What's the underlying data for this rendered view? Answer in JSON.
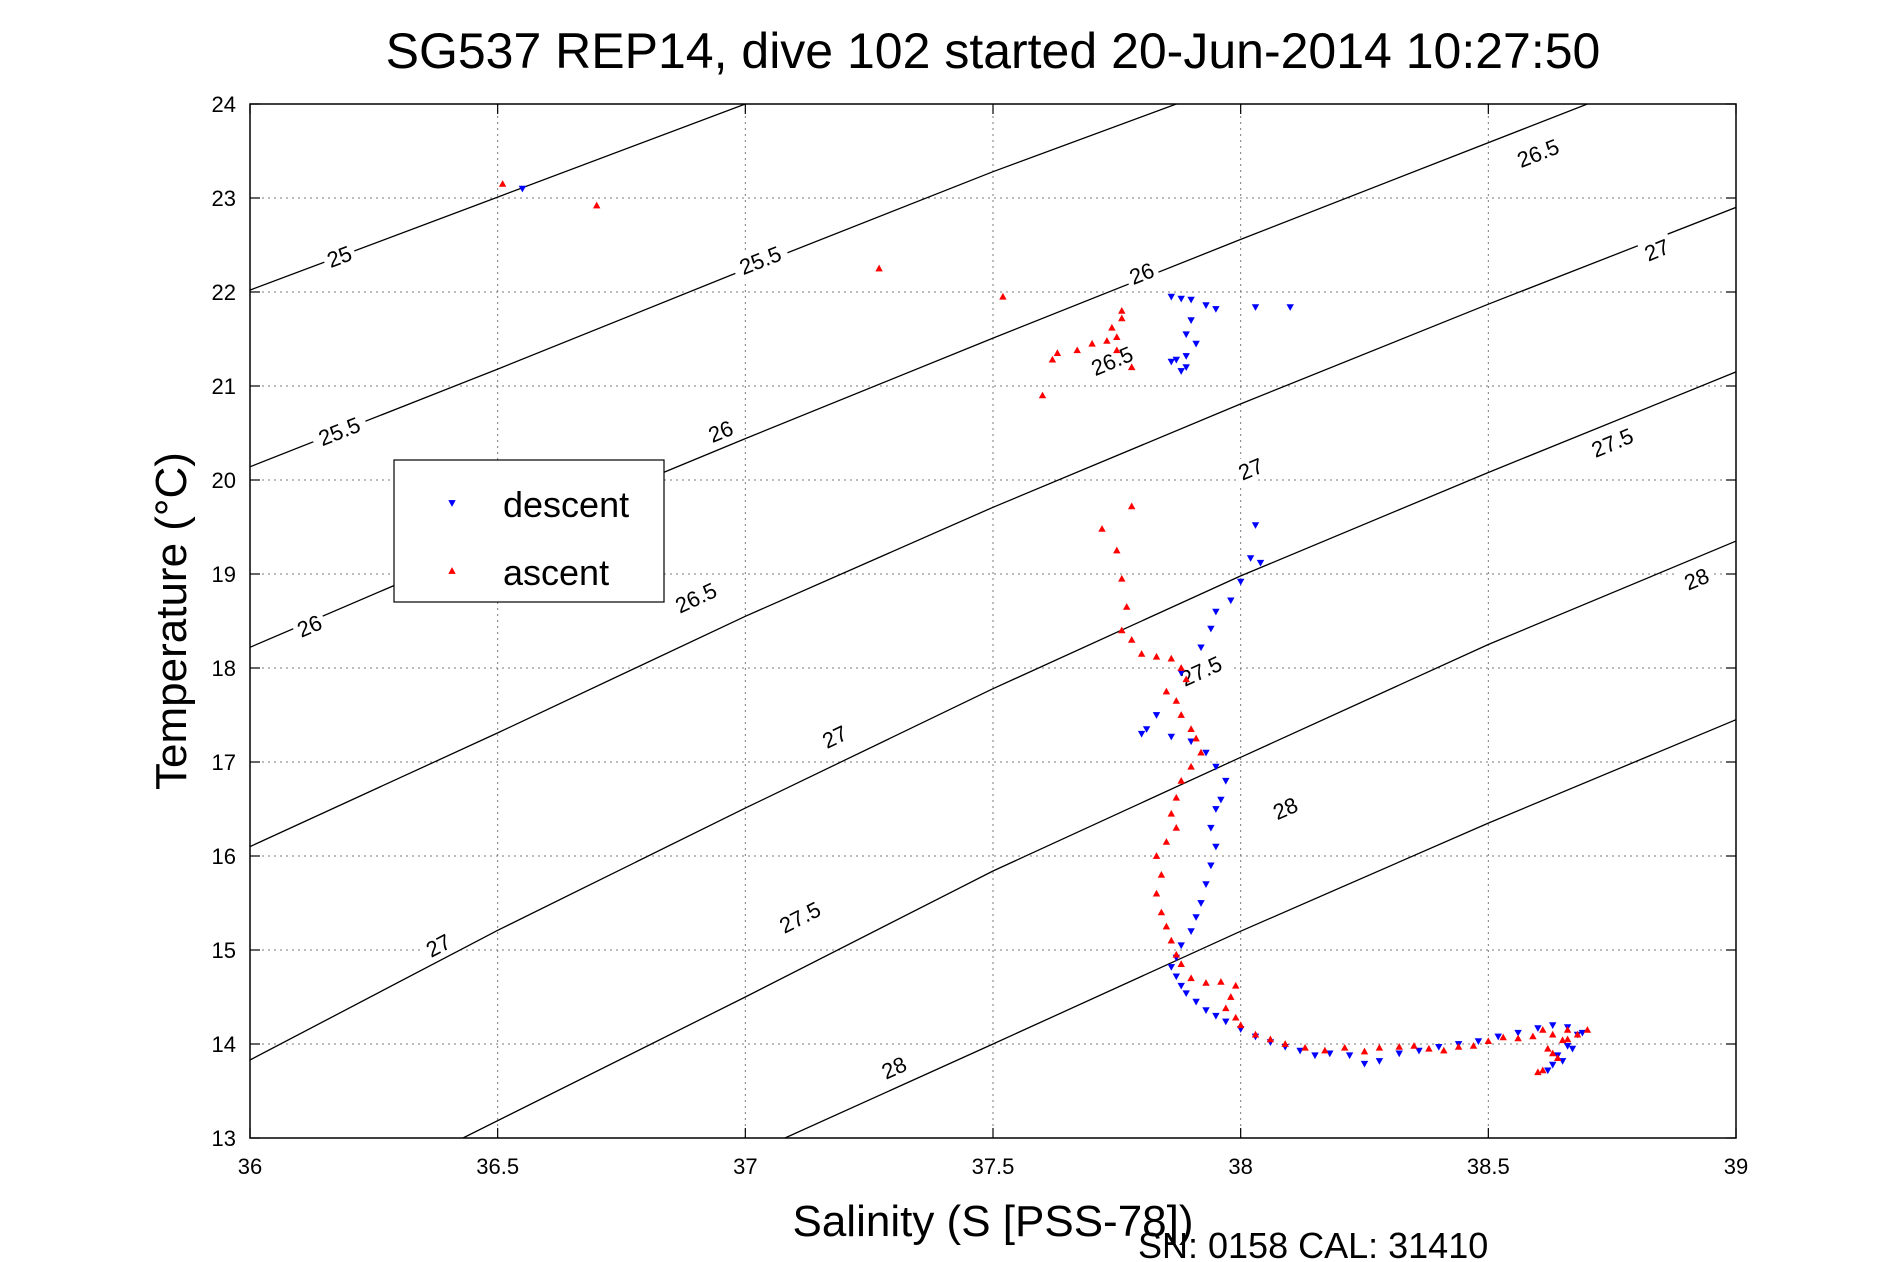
{
  "chart_data": {
    "type": "scatter",
    "title": "SG537 REP14, dive 102 started 20-Jun-2014 10:27:50",
    "xlabel": "Salinity (S [PSS-78])",
    "ylabel": "Temperature (°C)",
    "xlim": [
      36,
      39
    ],
    "ylim": [
      13,
      24
    ],
    "x_ticks": [
      36,
      36.5,
      37,
      37.5,
      38,
      38.5,
      39
    ],
    "x_tick_labels": [
      "36",
      "36.5",
      "37",
      "37.5",
      "38",
      "38.5",
      "39"
    ],
    "y_ticks": [
      13,
      14,
      15,
      16,
      17,
      18,
      19,
      20,
      21,
      22,
      23,
      24
    ],
    "y_tick_labels": [
      "13",
      "14",
      "15",
      "16",
      "17",
      "18",
      "19",
      "20",
      "21",
      "22",
      "23",
      "24"
    ],
    "grid": true,
    "legend_position": "left-center",
    "footer": "SN: 0158  CAL: 31410",
    "contours": [
      {
        "label": "25",
        "points": [
          [
            36.0,
            22.02
          ],
          [
            36.5,
            23.01
          ],
          [
            37.0,
            24.0
          ]
        ],
        "label_positions": [
          [
            36.18,
            22.38
          ]
        ]
      },
      {
        "label": "25.5",
        "points": [
          [
            36.0,
            20.14
          ],
          [
            36.5,
            21.18
          ],
          [
            37.0,
            22.24
          ],
          [
            37.5,
            23.28
          ],
          [
            37.87,
            24.0
          ]
        ],
        "label_positions": [
          [
            36.18,
            20.52
          ],
          [
            37.03,
            22.34
          ]
        ]
      },
      {
        "label": "26",
        "points": [
          [
            36.0,
            18.22
          ],
          [
            36.5,
            19.35
          ],
          [
            37.0,
            20.44
          ],
          [
            37.5,
            21.51
          ],
          [
            38.0,
            22.56
          ],
          [
            38.7,
            24.0
          ]
        ],
        "label_positions": [
          [
            36.12,
            18.45
          ],
          [
            36.95,
            20.52
          ],
          [
            37.8,
            22.2
          ]
        ]
      },
      {
        "label": "26.5",
        "points": [
          [
            36.0,
            16.1
          ],
          [
            36.5,
            17.31
          ],
          [
            37.0,
            18.55
          ],
          [
            37.5,
            19.71
          ],
          [
            38.0,
            20.81
          ],
          [
            38.5,
            21.87
          ],
          [
            39.0,
            22.9
          ]
        ],
        "label_positions": [
          [
            36.9,
            18.75
          ],
          [
            37.74,
            21.27
          ],
          [
            38.6,
            23.48
          ]
        ]
      },
      {
        "label": "27",
        "points": [
          [
            36.0,
            13.83
          ],
          [
            36.5,
            15.21
          ],
          [
            37.0,
            16.51
          ],
          [
            37.5,
            17.78
          ],
          [
            38.0,
            18.98
          ],
          [
            38.5,
            20.08
          ],
          [
            39.0,
            21.15
          ]
        ],
        "label_positions": [
          [
            36.38,
            15.05
          ],
          [
            37.18,
            17.27
          ],
          [
            38.02,
            20.12
          ],
          [
            38.84,
            22.45
          ]
        ]
      },
      {
        "label": "27.5",
        "points": [
          [
            36.43,
            13.0
          ],
          [
            37.0,
            14.5
          ],
          [
            37.5,
            15.84
          ],
          [
            38.0,
            17.05
          ],
          [
            38.5,
            18.25
          ],
          [
            39.0,
            19.35
          ]
        ],
        "label_positions": [
          [
            37.11,
            15.35
          ],
          [
            37.92,
            17.97
          ],
          [
            38.75,
            20.4
          ]
        ]
      },
      {
        "label": "28",
        "points": [
          [
            37.08,
            13.0
          ],
          [
            37.5,
            14.0
          ],
          [
            38.0,
            15.2
          ],
          [
            38.5,
            16.35
          ],
          [
            39.0,
            17.45
          ]
        ],
        "label_positions": [
          [
            37.3,
            13.75
          ],
          [
            38.09,
            16.51
          ],
          [
            38.92,
            18.95
          ]
        ]
      }
    ],
    "series": [
      {
        "name": "descent",
        "color": "#0000ff",
        "marker": "triangle-down",
        "points": [
          [
            36.55,
            23.1
          ],
          [
            37.86,
            21.95
          ],
          [
            37.88,
            21.93
          ],
          [
            37.9,
            21.92
          ],
          [
            37.93,
            21.86
          ],
          [
            37.95,
            21.82
          ],
          [
            38.03,
            21.84
          ],
          [
            38.1,
            21.84
          ],
          [
            37.9,
            21.7
          ],
          [
            37.89,
            21.55
          ],
          [
            37.91,
            21.45
          ],
          [
            37.89,
            21.32
          ],
          [
            37.87,
            21.28
          ],
          [
            37.86,
            21.26
          ],
          [
            37.89,
            21.2
          ],
          [
            37.88,
            21.16
          ],
          [
            38.03,
            19.52
          ],
          [
            38.02,
            19.17
          ],
          [
            38.04,
            19.12
          ],
          [
            38.0,
            18.92
          ],
          [
            37.98,
            18.72
          ],
          [
            37.95,
            18.6
          ],
          [
            37.94,
            18.42
          ],
          [
            37.92,
            18.22
          ],
          [
            37.88,
            17.95
          ],
          [
            37.83,
            17.5
          ],
          [
            37.81,
            17.35
          ],
          [
            37.8,
            17.3
          ],
          [
            37.86,
            17.27
          ],
          [
            37.9,
            17.22
          ],
          [
            37.93,
            17.1
          ],
          [
            37.95,
            16.95
          ],
          [
            37.97,
            16.8
          ],
          [
            37.96,
            16.6
          ],
          [
            37.95,
            16.5
          ],
          [
            37.94,
            16.3
          ],
          [
            37.95,
            16.1
          ],
          [
            37.94,
            15.9
          ],
          [
            37.93,
            15.7
          ],
          [
            37.92,
            15.5
          ],
          [
            37.91,
            15.35
          ],
          [
            37.9,
            15.2
          ],
          [
            37.88,
            15.05
          ],
          [
            37.87,
            14.92
          ],
          [
            37.86,
            14.82
          ],
          [
            37.87,
            14.72
          ],
          [
            37.88,
            14.62
          ],
          [
            37.89,
            14.54
          ],
          [
            37.91,
            14.45
          ],
          [
            37.93,
            14.36
          ],
          [
            37.95,
            14.3
          ],
          [
            37.97,
            14.24
          ],
          [
            38.0,
            14.16
          ],
          [
            38.03,
            14.08
          ],
          [
            38.06,
            14.02
          ],
          [
            38.09,
            13.97
          ],
          [
            38.12,
            13.93
          ],
          [
            38.15,
            13.88
          ],
          [
            38.18,
            13.9
          ],
          [
            38.22,
            13.88
          ],
          [
            38.25,
            13.79
          ],
          [
            38.28,
            13.82
          ],
          [
            38.32,
            13.9
          ],
          [
            38.36,
            13.93
          ],
          [
            38.4,
            13.97
          ],
          [
            38.44,
            14.0
          ],
          [
            38.48,
            14.03
          ],
          [
            38.52,
            14.08
          ],
          [
            38.56,
            14.12
          ],
          [
            38.6,
            14.17
          ],
          [
            38.63,
            14.2
          ],
          [
            38.66,
            14.18
          ],
          [
            38.68,
            14.1
          ],
          [
            38.66,
            13.98
          ],
          [
            38.64,
            13.88
          ],
          [
            38.63,
            13.78
          ],
          [
            38.62,
            13.72
          ],
          [
            38.65,
            13.82
          ],
          [
            38.67,
            13.95
          ],
          [
            38.69,
            14.12
          ]
        ]
      },
      {
        "name": "ascent",
        "color": "#ff0000",
        "marker": "triangle-up",
        "points": [
          [
            36.51,
            23.15
          ],
          [
            36.7,
            22.92
          ],
          [
            37.27,
            22.25
          ],
          [
            37.52,
            21.95
          ],
          [
            37.6,
            20.9
          ],
          [
            37.62,
            21.28
          ],
          [
            37.63,
            21.35
          ],
          [
            37.67,
            21.38
          ],
          [
            37.7,
            21.45
          ],
          [
            37.73,
            21.48
          ],
          [
            37.75,
            21.52
          ],
          [
            37.74,
            21.62
          ],
          [
            37.76,
            21.72
          ],
          [
            37.76,
            21.8
          ],
          [
            37.75,
            21.38
          ],
          [
            37.78,
            21.2
          ],
          [
            37.78,
            19.72
          ],
          [
            37.72,
            19.48
          ],
          [
            37.75,
            19.25
          ],
          [
            37.76,
            18.95
          ],
          [
            37.77,
            18.65
          ],
          [
            37.76,
            18.4
          ],
          [
            37.78,
            18.3
          ],
          [
            37.8,
            18.15
          ],
          [
            37.83,
            18.12
          ],
          [
            37.86,
            18.1
          ],
          [
            37.88,
            18.0
          ],
          [
            37.89,
            17.88
          ],
          [
            37.85,
            17.75
          ],
          [
            37.87,
            17.65
          ],
          [
            37.88,
            17.5
          ],
          [
            37.9,
            17.35
          ],
          [
            37.91,
            17.25
          ],
          [
            37.92,
            17.1
          ],
          [
            37.9,
            16.95
          ],
          [
            37.88,
            16.8
          ],
          [
            37.87,
            16.62
          ],
          [
            37.86,
            16.45
          ],
          [
            37.87,
            16.3
          ],
          [
            37.85,
            16.15
          ],
          [
            37.83,
            16.0
          ],
          [
            37.84,
            15.8
          ],
          [
            37.83,
            15.6
          ],
          [
            37.84,
            15.4
          ],
          [
            37.85,
            15.25
          ],
          [
            37.86,
            15.1
          ],
          [
            37.87,
            14.95
          ],
          [
            37.88,
            14.85
          ],
          [
            37.9,
            14.7
          ],
          [
            37.93,
            14.65
          ],
          [
            37.96,
            14.66
          ],
          [
            37.99,
            14.62
          ],
          [
            37.98,
            14.5
          ],
          [
            37.97,
            14.38
          ],
          [
            37.99,
            14.28
          ],
          [
            38.0,
            14.2
          ],
          [
            38.03,
            14.1
          ],
          [
            38.06,
            14.05
          ],
          [
            38.09,
            14.0
          ],
          [
            38.13,
            13.96
          ],
          [
            38.17,
            13.93
          ],
          [
            38.21,
            13.96
          ],
          [
            38.25,
            13.92
          ],
          [
            38.28,
            13.96
          ],
          [
            38.32,
            13.97
          ],
          [
            38.35,
            13.98
          ],
          [
            38.38,
            13.95
          ],
          [
            38.41,
            13.93
          ],
          [
            38.44,
            13.97
          ],
          [
            38.47,
            13.98
          ],
          [
            38.5,
            14.03
          ],
          [
            38.53,
            14.07
          ],
          [
            38.56,
            14.06
          ],
          [
            38.59,
            14.08
          ],
          [
            38.61,
            14.15
          ],
          [
            38.63,
            14.1
          ],
          [
            38.65,
            14.04
          ],
          [
            38.62,
            13.95
          ],
          [
            38.64,
            13.85
          ],
          [
            38.61,
            13.72
          ],
          [
            38.6,
            13.7
          ],
          [
            38.63,
            13.9
          ],
          [
            38.66,
            14.05
          ],
          [
            38.68,
            14.1
          ],
          [
            38.7,
            14.15
          ],
          [
            38.66,
            14.15
          ]
        ]
      }
    ]
  }
}
